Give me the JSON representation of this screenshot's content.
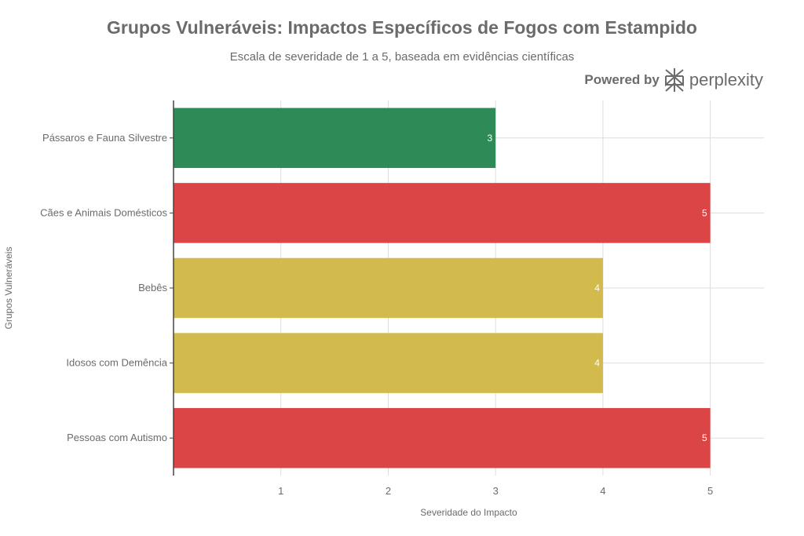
{
  "brand": {
    "powered_label": "Powered by",
    "name": "perplexity"
  },
  "chart_data": {
    "type": "bar",
    "orientation": "horizontal",
    "title": "Grupos Vulneráveis: Impactos Específicos de Fogos com Estampido",
    "subtitle": "Escala de severidade de 1 a 5, baseada em evidências científicas",
    "xlabel": "Severidade do Impacto",
    "ylabel": "Grupos Vulneráveis",
    "xlim": [
      0,
      5.5
    ],
    "xticks": [
      1,
      2,
      3,
      4,
      5
    ],
    "grid": true,
    "categories": [
      "Pássaros e Fauna Silvestre",
      "Cães e Animais Domésticos",
      "Bebês",
      "Idosos com Demência",
      "Pessoas com Autismo"
    ],
    "values": [
      3,
      5,
      4,
      4,
      5
    ],
    "colors": [
      "#2e8b57",
      "#db4545",
      "#d2ba4c",
      "#d2ba4c",
      "#db4545"
    ],
    "data_labels": [
      "3",
      "5",
      "4",
      "4",
      "5"
    ]
  }
}
